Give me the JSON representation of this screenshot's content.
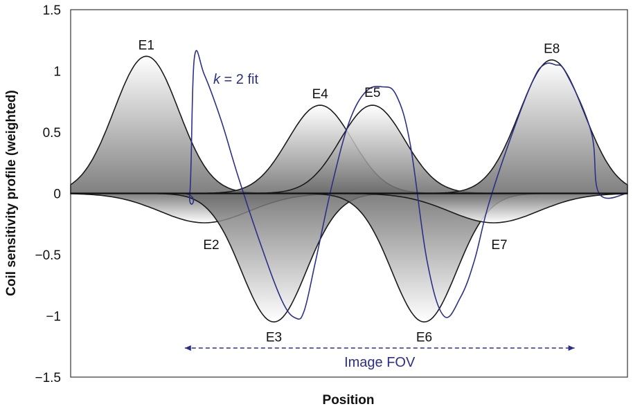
{
  "chart_data": {
    "type": "line",
    "title": "",
    "xlabel": "Position",
    "ylabel": "Coil sensitivity profile (weighted)",
    "ylim": [
      -1.5,
      1.5
    ],
    "yticks": [
      {
        "value": 1.5,
        "label": "1.5"
      },
      {
        "value": 1,
        "label": "1"
      },
      {
        "value": 0.5,
        "label": "0.5"
      },
      {
        "value": 0,
        "label": "0"
      },
      {
        "value": -0.5,
        "label": "−0.5"
      },
      {
        "value": -1,
        "label": "−1"
      },
      {
        "value": -1.5,
        "label": "−1.5"
      }
    ],
    "grid": false,
    "coils": [
      {
        "name": "E1",
        "center": 0.136,
        "amplitude": 1.12,
        "sigma": 0.058
      },
      {
        "name": "E2",
        "center": 0.24,
        "amplitude": -0.24,
        "sigma": 0.08
      },
      {
        "name": "E3",
        "center": 0.365,
        "amplitude": -1.05,
        "sigma": 0.058
      },
      {
        "name": "E4",
        "center": 0.448,
        "amplitude": 0.72,
        "sigma": 0.058
      },
      {
        "name": "E5",
        "center": 0.542,
        "amplitude": 0.72,
        "sigma": 0.058
      },
      {
        "name": "E6",
        "center": 0.635,
        "amplitude": -1.05,
        "sigma": 0.058
      },
      {
        "name": "E7",
        "center": 0.76,
        "amplitude": -0.24,
        "sigma": 0.08
      },
      {
        "name": "E8",
        "center": 0.864,
        "amplitude": 1.09,
        "sigma": 0.058
      }
    ],
    "fit": {
      "label_italic": "k",
      "label_rest": " = 2 fit",
      "color": "#2b2f86",
      "x": [
        0.0,
        0.2,
        0.214,
        0.222,
        0.24,
        0.27,
        0.3,
        0.34,
        0.38,
        0.405,
        0.42,
        0.44,
        0.47,
        0.5,
        0.53,
        0.56,
        0.585,
        0.61,
        0.64,
        0.67,
        0.7,
        0.725,
        0.75,
        0.79,
        0.83,
        0.85,
        0.87,
        0.89,
        0.935,
        0.949,
        1.0
      ],
      "y": [
        0.0,
        0.0,
        0.0,
        1.1,
        0.97,
        0.6,
        0.15,
        -0.4,
        -0.88,
        -1.02,
        -0.95,
        -0.55,
        0.08,
        0.58,
        0.83,
        0.87,
        0.8,
        0.4,
        -0.55,
        -1.0,
        -0.85,
        -0.55,
        -0.1,
        0.45,
        0.92,
        1.05,
        1.05,
        0.98,
        0.5,
        0.0,
        0.0
      ]
    },
    "fov": {
      "label": "Image FOV",
      "from": 0.205,
      "to": 0.905
    }
  }
}
